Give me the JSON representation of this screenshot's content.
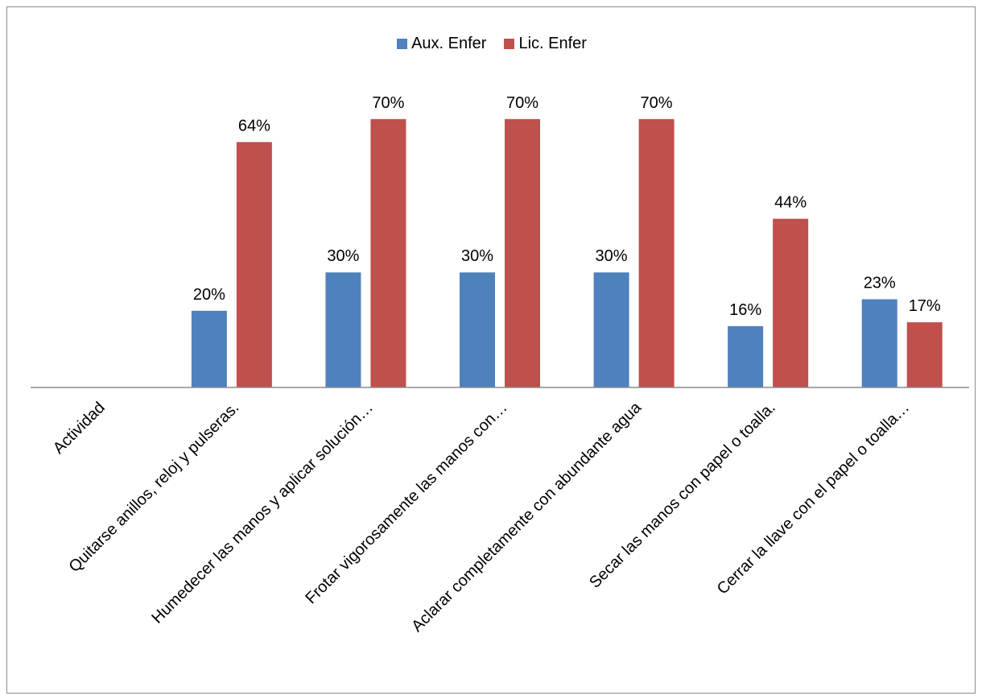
{
  "chart_data": {
    "type": "bar",
    "categories": [
      "Actividad",
      "Quitarse anillos, reloj y pulseras.",
      "Humedecer las manos y aplicar solución…",
      "Frotar vigorosamente las manos con…",
      "Aclarar completamente con abundante agua",
      "Secar las manos con papel o toalla.",
      "Cerrar la llave con el papel o toalla…"
    ],
    "series": [
      {
        "name": "Aux. Enfer",
        "color": "#4f81bd",
        "values": [
          null,
          0.2,
          0.3,
          0.3,
          0.3,
          0.16,
          0.23
        ],
        "labels": [
          "",
          "20%",
          "30%",
          "30%",
          "30%",
          "16%",
          "23%"
        ]
      },
      {
        "name": "Lic. Enfer",
        "color": "#c0504d",
        "values": [
          null,
          0.64,
          0.7,
          0.7,
          0.7,
          0.44,
          0.17
        ],
        "labels": [
          "",
          "64%",
          "70%",
          "70%",
          "70%",
          "44%",
          "17%"
        ]
      }
    ],
    "ylim": [
      0,
      0.8
    ],
    "grid": false,
    "legend_position": "top-center"
  }
}
